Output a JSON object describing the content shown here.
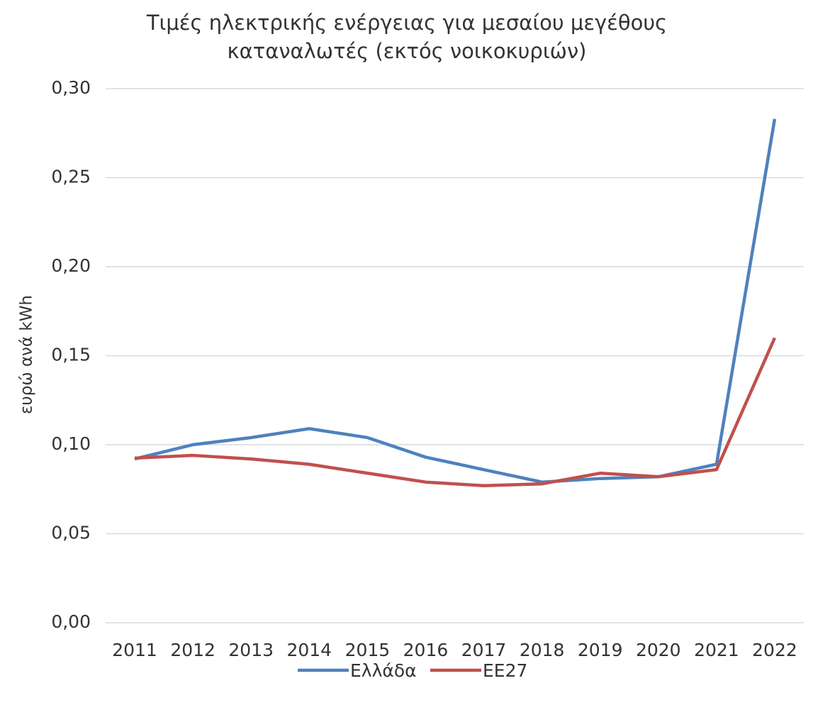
{
  "chart_data": {
    "type": "line",
    "title": [
      "Τιμές ηλεκτρικής ενέργειας για μεσαίου μεγέθους",
      "καταναλωτές (εκτός νοικοκυριών)"
    ],
    "y_label": "ευρώ ανά kWh",
    "categories": [
      "2011",
      "2012",
      "2013",
      "2014",
      "2015",
      "2016",
      "2017",
      "2018",
      "2019",
      "2020",
      "2021",
      "2022"
    ],
    "series": [
      {
        "name": "Ελλάδα",
        "color": "#4f81bd",
        "values": [
          0.092,
          0.1,
          0.104,
          0.109,
          0.104,
          0.093,
          0.086,
          0.079,
          0.081,
          0.082,
          0.089,
          0.283
        ]
      },
      {
        "name": "ΕΕ27",
        "color": "#c0504d",
        "values": [
          0.0925,
          0.094,
          0.092,
          0.089,
          0.084,
          0.079,
          0.077,
          0.078,
          0.084,
          0.082,
          0.086,
          0.16
        ]
      }
    ],
    "ylim": [
      0,
      0.3
    ],
    "yticks": [
      {
        "value": 0,
        "label": "0,00"
      },
      {
        "value": 0.05,
        "label": "0,05"
      },
      {
        "value": 0.1,
        "label": "0,10"
      },
      {
        "value": 0.15,
        "label": "0,15"
      },
      {
        "value": 0.2,
        "label": "0,20"
      },
      {
        "value": 0.25,
        "label": "0,25"
      },
      {
        "value": 0.3,
        "label": "0,30"
      }
    ],
    "grid": true,
    "legend": "bottom"
  }
}
